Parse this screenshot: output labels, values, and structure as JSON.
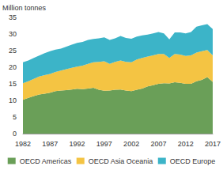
{
  "chart_data": {
    "type": "area",
    "stacked": true,
    "grid": false,
    "legend": "bottom",
    "y_label": "Million tonnes",
    "categories": [
      "1982",
      null,
      null,
      null,
      null,
      "1987",
      null,
      null,
      null,
      null,
      "1992",
      null,
      null,
      null,
      null,
      "1997",
      null,
      null,
      null,
      null,
      "2002",
      null,
      null,
      null,
      null,
      "2007",
      null,
      null,
      null,
      null,
      "2012",
      null,
      null,
      null,
      null,
      "2017"
    ],
    "series": [
      {
        "name": "OECD Americas",
        "color": "#6a9f58",
        "values": [
          10.2,
          10.8,
          11.3,
          11.8,
          12.0,
          12.3,
          12.8,
          13.0,
          13.1,
          13.3,
          13.5,
          13.4,
          13.6,
          13.8,
          13.2,
          12.9,
          13.0,
          13.2,
          13.3,
          13.0,
          12.8,
          13.2,
          13.6,
          14.2,
          14.6,
          15.0,
          15.2,
          15.1,
          15.5,
          15.3,
          15.0,
          15.0,
          15.8,
          16.2,
          17.0,
          15.6
        ]
      },
      {
        "name": "OECD Asia Oceania",
        "color": "#f4c443",
        "values": [
          5.0,
          5.0,
          5.2,
          5.4,
          5.6,
          5.7,
          5.8,
          6.0,
          6.3,
          6.5,
          6.7,
          7.1,
          7.4,
          7.7,
          8.4,
          8.9,
          8.0,
          8.4,
          8.7,
          8.6,
          8.7,
          9.1,
          9.2,
          9.0,
          9.0,
          9.0,
          8.8,
          7.7,
          8.5,
          8.5,
          8.4,
          8.6,
          8.6,
          8.6,
          8.2,
          8.0
        ]
      },
      {
        "name": "OECD Europe",
        "color": "#3cb4c8",
        "values": [
          6.3,
          6.2,
          6.3,
          6.3,
          6.6,
          6.8,
          6.7,
          6.6,
          6.8,
          7.0,
          7.1,
          7.1,
          7.2,
          7.0,
          7.1,
          7.2,
          7.2,
          7.1,
          7.4,
          7.2,
          7.1,
          6.9,
          6.8,
          6.6,
          6.6,
          6.6,
          6.2,
          5.6,
          6.5,
          6.7,
          6.8,
          7.0,
          7.8,
          7.8,
          7.8,
          7.9
        ]
      }
    ],
    "ylim": [
      0,
      35
    ],
    "yticks": [
      0,
      5,
      10,
      15,
      20,
      25,
      30,
      35
    ]
  }
}
